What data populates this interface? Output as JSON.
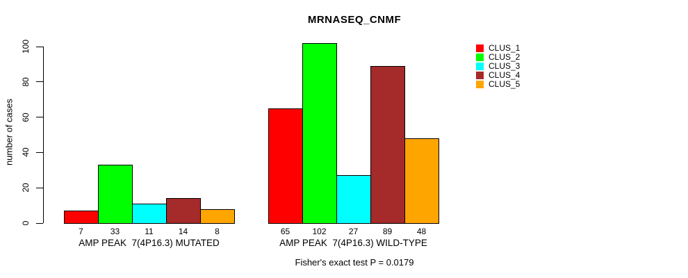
{
  "title": "MRNASEQ_CNMF",
  "caption": "Fisher's exact test P = 0.0179",
  "chart_data": {
    "type": "bar",
    "title": "MRNASEQ_CNMF",
    "xlabel": "",
    "ylabel": "number of cases",
    "ylim": [
      0,
      100
    ],
    "yticks": [
      0,
      20,
      40,
      60,
      80,
      100
    ],
    "grid": false,
    "legend_position": "right",
    "value_labels_shown": true,
    "annotation": "Fisher's exact test P = 0.0179",
    "categories": [
      "AMP PEAK  7(4P16.3) MUTATED",
      "AMP PEAK  7(4P16.3) WILD-TYPE"
    ],
    "series": [
      {
        "name": "CLUS_1",
        "color": "#ff0000",
        "values": [
          7,
          65
        ]
      },
      {
        "name": "CLUS_2",
        "color": "#00ff00",
        "values": [
          33,
          102
        ]
      },
      {
        "name": "CLUS_3",
        "color": "#00ffff",
        "values": [
          11,
          27
        ]
      },
      {
        "name": "CLUS_4",
        "color": "#a52a2a",
        "values": [
          14,
          89
        ]
      },
      {
        "name": "CLUS_5",
        "color": "#ffa500",
        "values": [
          8,
          48
        ]
      }
    ]
  }
}
